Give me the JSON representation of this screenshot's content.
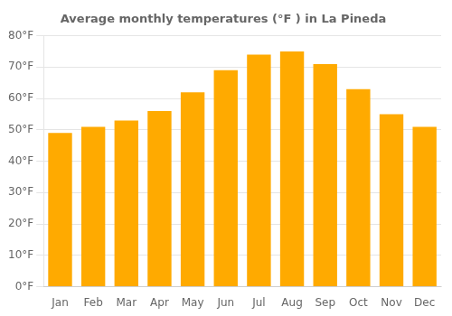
{
  "chart_data": {
    "type": "bar",
    "title": "Average monthly temperatures (°F ) in La Pineda",
    "categories": [
      "Jan",
      "Feb",
      "Mar",
      "Apr",
      "May",
      "Jun",
      "Jul",
      "Aug",
      "Sep",
      "Oct",
      "Nov",
      "Dec"
    ],
    "values": [
      49,
      51,
      53,
      56,
      62,
      69,
      74,
      75,
      71,
      63,
      55,
      51
    ],
    "color": "#FFAA00",
    "ylim": [
      0,
      80
    ],
    "yticks": [
      {
        "value": 0,
        "label": "0°F"
      },
      {
        "value": 10,
        "label": "10°F"
      },
      {
        "value": 20,
        "label": "20°F"
      },
      {
        "value": 30,
        "label": "30°F"
      },
      {
        "value": 40,
        "label": "40°F"
      },
      {
        "value": 50,
        "label": "50°F"
      },
      {
        "value": 60,
        "label": "60°F"
      },
      {
        "value": 70,
        "label": "70°F"
      },
      {
        "value": 80,
        "label": "80°F"
      }
    ],
    "grid": true
  }
}
